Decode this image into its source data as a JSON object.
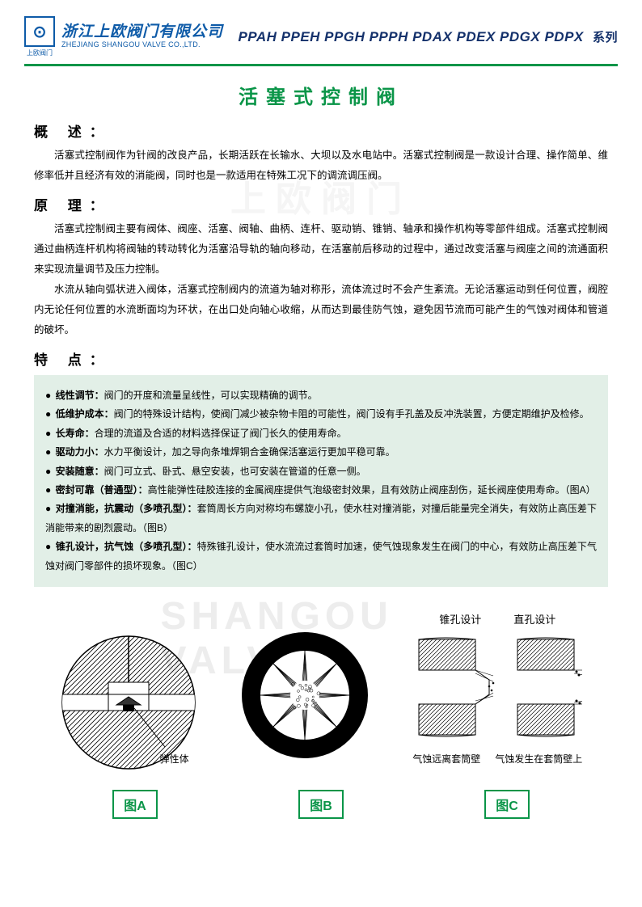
{
  "header": {
    "logo_cn": "浙江上欧阀门有限公司",
    "logo_en": "ZHEJIANG SHANGOU VALVE CO.,LTD.",
    "logo_sub": "上欧阀门",
    "logo_sub_en": "SHANGOU VALVE",
    "series_codes": "PPAH PPEH PPGH PPPH PDAX PDEX PDGX PDPX",
    "series_suffix": "系列"
  },
  "title": "活塞式控制阀",
  "sections": {
    "overview_h": "概 述：",
    "overview_p": "活塞式控制阀作为针阀的改良产品，长期活跃在长输水、大坝以及水电站中。活塞式控制阀是一款设计合理、操作简单、维修率低并且经济有效的消能阀，同时也是一款适用在特殊工况下的调流调压阀。",
    "principle_h": "原 理：",
    "principle_p1": "活塞式控制阀主要有阀体、阀座、活塞、阀轴、曲柄、连杆、驱动销、锥销、轴承和操作机构等零部件组成。活塞式控制阀通过曲柄连杆机构将阀轴的转动转化为活塞沿导轨的轴向移动，在活塞前后移动的过程中，通过改变活塞与阀座之间的流通面积来实现流量调节及压力控制。",
    "principle_p2": "水流从轴向弧状进入阀体，活塞式控制阀内的流道为轴对称形，流体流过时不会产生紊流。无论活塞运动到任何位置，阀腔内无论任何位置的水流断面均为环状，在出口处向轴心收缩，从而达到最佳防气蚀，避免因节流而可能产生的气蚀对阀体和管道的破坏。",
    "features_h": "特 点："
  },
  "features": [
    {
      "label": "线性调节：",
      "text": "阀门的开度和流量呈线性，可以实现精确的调节。"
    },
    {
      "label": "低维护成本：",
      "text": "阀门的特殊设计结构，使阀门减少被杂物卡阻的可能性，阀门设有手孔盖及反冲洗装置，方便定期维护及检修。"
    },
    {
      "label": "长寿命：",
      "text": "合理的流道及合适的材料选择保证了阀门长久的使用寿命。"
    },
    {
      "label": "驱动力小：",
      "text": "水力平衡设计，加之导向条堆焊铜合金确保活塞运行更加平稳可靠。"
    },
    {
      "label": "安装随意：",
      "text": "阀门可立式、卧式、悬空安装，也可安装在管道的任意一侧。"
    },
    {
      "label": "密封可靠（普通型）：",
      "text": "高性能弹性硅胶连接的金属阀座提供气泡级密封效果，且有效防止阀座刮伤，延长阀座使用寿命。（图A）"
    },
    {
      "label": "对撞消能，抗震动（多喷孔型）：",
      "text": "套筒周长方向对称均布螺旋小孔，使水柱对撞消能，对撞后能量完全消失，有效防止高压差下消能带来的剧烈震动。（图B）"
    },
    {
      "label": "锥孔设计，抗气蚀（多喷孔型）：",
      "text": "特殊锥孔设计，使水流流过套筒时加速，使气蚀现象发生在阀门的中心，有效防止高压差下气蚀对阀门零部件的损坏现象。（图C）"
    }
  ],
  "diagrams": {
    "a_label": "图A",
    "b_label": "图B",
    "c_label": "图C",
    "a_caption": "弹性体",
    "c_top_left": "锥孔设计",
    "c_top_right": "直孔设计",
    "c_bot_left": "气蚀远离套筒壁",
    "c_bot_right": "气蚀发生在套筒壁上"
  },
  "watermarks": {
    "cn": "上欧阀门",
    "en": "SHANGOU VALVE"
  },
  "colors": {
    "green": "#0a9548",
    "blue": "#0e5ba8",
    "feature_bg": "#e2efe7"
  }
}
